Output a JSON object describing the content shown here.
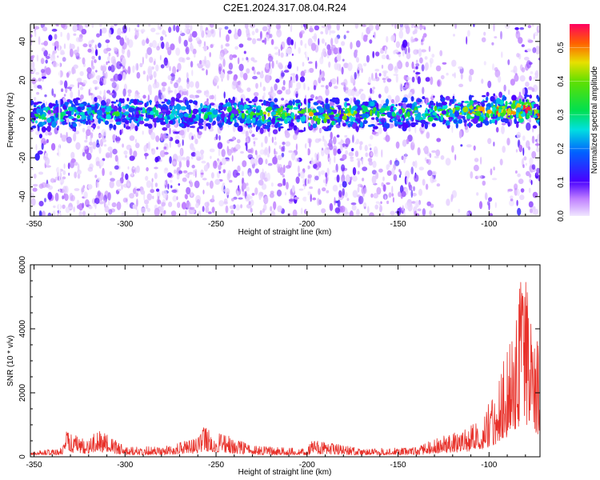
{
  "title": "C2E1.2024.317.08.04.R24",
  "chart_data": [
    {
      "type": "heatmap",
      "xlabel": "Height of straight line (km)",
      "ylabel": "Frequency (Hz)",
      "xlim": [
        -352,
        -72
      ],
      "ylim": [
        -50,
        49
      ],
      "xticks": [
        -350,
        -300,
        -250,
        -200,
        -150,
        -100
      ],
      "yticks": [
        -40,
        -20,
        0,
        20,
        40
      ],
      "colorbar": {
        "label": "Normalized spectral amplitude",
        "range": [
          0.0,
          0.57
        ],
        "ticks": [
          "0.0",
          "0.1",
          "0.2",
          "0.3",
          "0.4",
          "0.5"
        ]
      },
      "ridge": {
        "center_frequency_hz": [
          {
            "x": -350,
            "y": 2
          },
          {
            "x": -300,
            "y": 3
          },
          {
            "x": -250,
            "y": 3
          },
          {
            "x": -200,
            "y": 2
          },
          {
            "x": -150,
            "y": 3
          },
          {
            "x": -100,
            "y": 4
          },
          {
            "x": -80,
            "y": 5
          },
          {
            "x": -72,
            "y": 3
          }
        ],
        "peak_amplitude": [
          {
            "x": -350,
            "y": 0.3
          },
          {
            "x": -300,
            "y": 0.3
          },
          {
            "x": -250,
            "y": 0.27
          },
          {
            "x": -200,
            "y": 0.5
          },
          {
            "x": -150,
            "y": 0.3
          },
          {
            "x": -120,
            "y": 0.4
          },
          {
            "x": -100,
            "y": 0.5
          },
          {
            "x": -80,
            "y": 0.55
          }
        ]
      },
      "grid": false
    },
    {
      "type": "line",
      "xlabel": "Height of straight line (km)",
      "ylabel": "SNR (10 * v/v)",
      "xlim": [
        -352,
        -72
      ],
      "ylim": [
        0,
        6000
      ],
      "xticks": [
        -350,
        -300,
        -250,
        -200,
        -150,
        -100
      ],
      "yticks": [
        0,
        2000,
        4000,
        6000
      ],
      "series": [
        {
          "color": "#e8312a",
          "envelope": [
            {
              "x": -352,
              "y": 150
            },
            {
              "x": -335,
              "y": 300
            },
            {
              "x": -333,
              "y": 800
            },
            {
              "x": -320,
              "y": 500
            },
            {
              "x": -316,
              "y": 900
            },
            {
              "x": -300,
              "y": 350
            },
            {
              "x": -280,
              "y": 300
            },
            {
              "x": -260,
              "y": 600
            },
            {
              "x": -257,
              "y": 950
            },
            {
              "x": -245,
              "y": 700
            },
            {
              "x": -230,
              "y": 350
            },
            {
              "x": -200,
              "y": 250
            },
            {
              "x": -197,
              "y": 550
            },
            {
              "x": -170,
              "y": 250
            },
            {
              "x": -140,
              "y": 300
            },
            {
              "x": -127,
              "y": 650
            },
            {
              "x": -115,
              "y": 800
            },
            {
              "x": -105,
              "y": 1200
            },
            {
              "x": -98,
              "y": 1900
            },
            {
              "x": -90,
              "y": 3500
            },
            {
              "x": -84,
              "y": 5200
            },
            {
              "x": -81,
              "y": 6000
            },
            {
              "x": -76,
              "y": 4800
            },
            {
              "x": -72,
              "y": 3500
            }
          ]
        }
      ],
      "grid": false
    }
  ]
}
